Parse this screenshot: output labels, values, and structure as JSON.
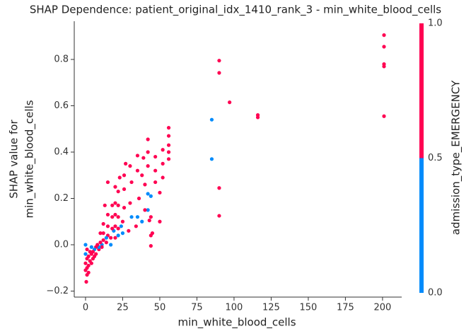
{
  "chart_data": {
    "type": "scatter",
    "title": "SHAP Dependence: patient_original_idx_1410_rank_3 - min_white_blood_cells",
    "xlabel": "min_white_blood_cells",
    "ylabel": [
      "SHAP value for",
      "min_white_blood_cells"
    ],
    "x": [
      201,
      201,
      201,
      201,
      201,
      116,
      116,
      97,
      90,
      90,
      90,
      90,
      85,
      85,
      56,
      56,
      56,
      56,
      56,
      52,
      52,
      52,
      50,
      50,
      47,
      47,
      47,
      44,
      44,
      44,
      44,
      42,
      42,
      42,
      42,
      42,
      39,
      40,
      40,
      38,
      38,
      35,
      35,
      36,
      35,
      34,
      30,
      31,
      30,
      31,
      29,
      27,
      26,
      26,
      26,
      25,
      25,
      24,
      23,
      22,
      22,
      22,
      22,
      22,
      20,
      20,
      20,
      20,
      20,
      19,
      18,
      18,
      18,
      17,
      17,
      15,
      15,
      15,
      14,
      14,
      12,
      12,
      12,
      11,
      11,
      10,
      10,
      9,
      9,
      8,
      7,
      7,
      6,
      6,
      5,
      5,
      4,
      4,
      4,
      3,
      3,
      2,
      2,
      2,
      1,
      1,
      1,
      0.5,
      0,
      0,
      0,
      0,
      1,
      15,
      13,
      43,
      45
    ],
    "y": [
      0.905,
      0.855,
      0.78,
      0.77,
      0.555,
      0.56,
      0.55,
      0.615,
      0.795,
      0.742,
      0.245,
      0.125,
      0.54,
      0.37,
      0.505,
      0.47,
      0.43,
      0.4,
      0.37,
      0.41,
      0.35,
      0.29,
      0.225,
      0.1,
      0.38,
      0.32,
      0.27,
      0.21,
      0.12,
      0.04,
      -0.005,
      0.455,
      0.4,
      0.34,
      0.22,
      0.15,
      0.375,
      0.26,
      0.15,
      0.1,
      0.3,
      0.385,
      0.32,
      0.2,
      0.12,
      0.08,
      0.34,
      0.27,
      0.18,
      0.12,
      0.06,
      0.35,
      0.3,
      0.24,
      0.16,
      0.1,
      0.05,
      0.08,
      0.29,
      0.23,
      0.17,
      0.12,
      0.07,
      0.04,
      0.25,
      0.18,
      0.13,
      0.08,
      0.03,
      0.06,
      0.17,
      0.12,
      0.07,
      0.03,
      0,
      0.13,
      0.08,
      0.04,
      0.01,
      0.03,
      0.09,
      0.05,
      0.02,
      0,
      -0.01,
      0.05,
      0.01,
      -0.02,
      -0.01,
      0,
      -0.01,
      -0.04,
      -0.05,
      -0.02,
      -0.03,
      -0.06,
      -0.04,
      -0.08,
      -0.01,
      -0.03,
      -0.07,
      -0.05,
      -0.09,
      -0.12,
      -0.06,
      -0.1,
      -0.13,
      -0.16,
      -0.04,
      0,
      -0.08,
      -0.11,
      -0.02,
      0.27,
      0.17,
      0.105,
      0.05
    ],
    "c": [
      1,
      1,
      1,
      1,
      1,
      1,
      1,
      1,
      1,
      1,
      1,
      1,
      0,
      0,
      1,
      1,
      1,
      1,
      1,
      1,
      1,
      1,
      1,
      1,
      1,
      1,
      1,
      0,
      1,
      1,
      1,
      1,
      1,
      1,
      0,
      0,
      1,
      1,
      1,
      0,
      1,
      1,
      1,
      1,
      0,
      1,
      1,
      1,
      1,
      0,
      1,
      1,
      1,
      1,
      1,
      1,
      0,
      0,
      1,
      1,
      1,
      1,
      1,
      0,
      1,
      1,
      1,
      1,
      1,
      0,
      1,
      1,
      1,
      1,
      0,
      1,
      1,
      1,
      1,
      0,
      1,
      1,
      1,
      0,
      1,
      1,
      1,
      1,
      0,
      1,
      1,
      1,
      1,
      0,
      1,
      1,
      1,
      1,
      0,
      1,
      1,
      1,
      1,
      1,
      1,
      1,
      1,
      1,
      0,
      0,
      1,
      1,
      1,
      1,
      1,
      1,
      1
    ],
    "cmap": [
      "#008bfb",
      "#ff0052"
    ],
    "xlim": [
      -7.6,
      212.9
    ],
    "ylim": [
      -0.226,
      0.965
    ],
    "xticks": [
      0,
      25,
      50,
      75,
      100,
      125,
      150,
      175,
      200
    ],
    "yticks": [
      {
        "value": -0.2,
        "label": "−0.2"
      },
      {
        "value": 0,
        "label": "0.0"
      },
      {
        "value": 0.2,
        "label": "0.2"
      },
      {
        "value": 0.4,
        "label": "0.4"
      },
      {
        "value": 0.6,
        "label": "0.6"
      },
      {
        "value": 0.8,
        "label": "0.8"
      }
    ],
    "colorbar": {
      "label": "admission_type_EMERGENCY",
      "lim": [
        0,
        1
      ],
      "ticks": [
        {
          "value": 0,
          "label": "0.0"
        },
        {
          "value": 0.5,
          "label": "0.5"
        },
        {
          "value": 1,
          "label": "1.0"
        }
      ]
    }
  }
}
